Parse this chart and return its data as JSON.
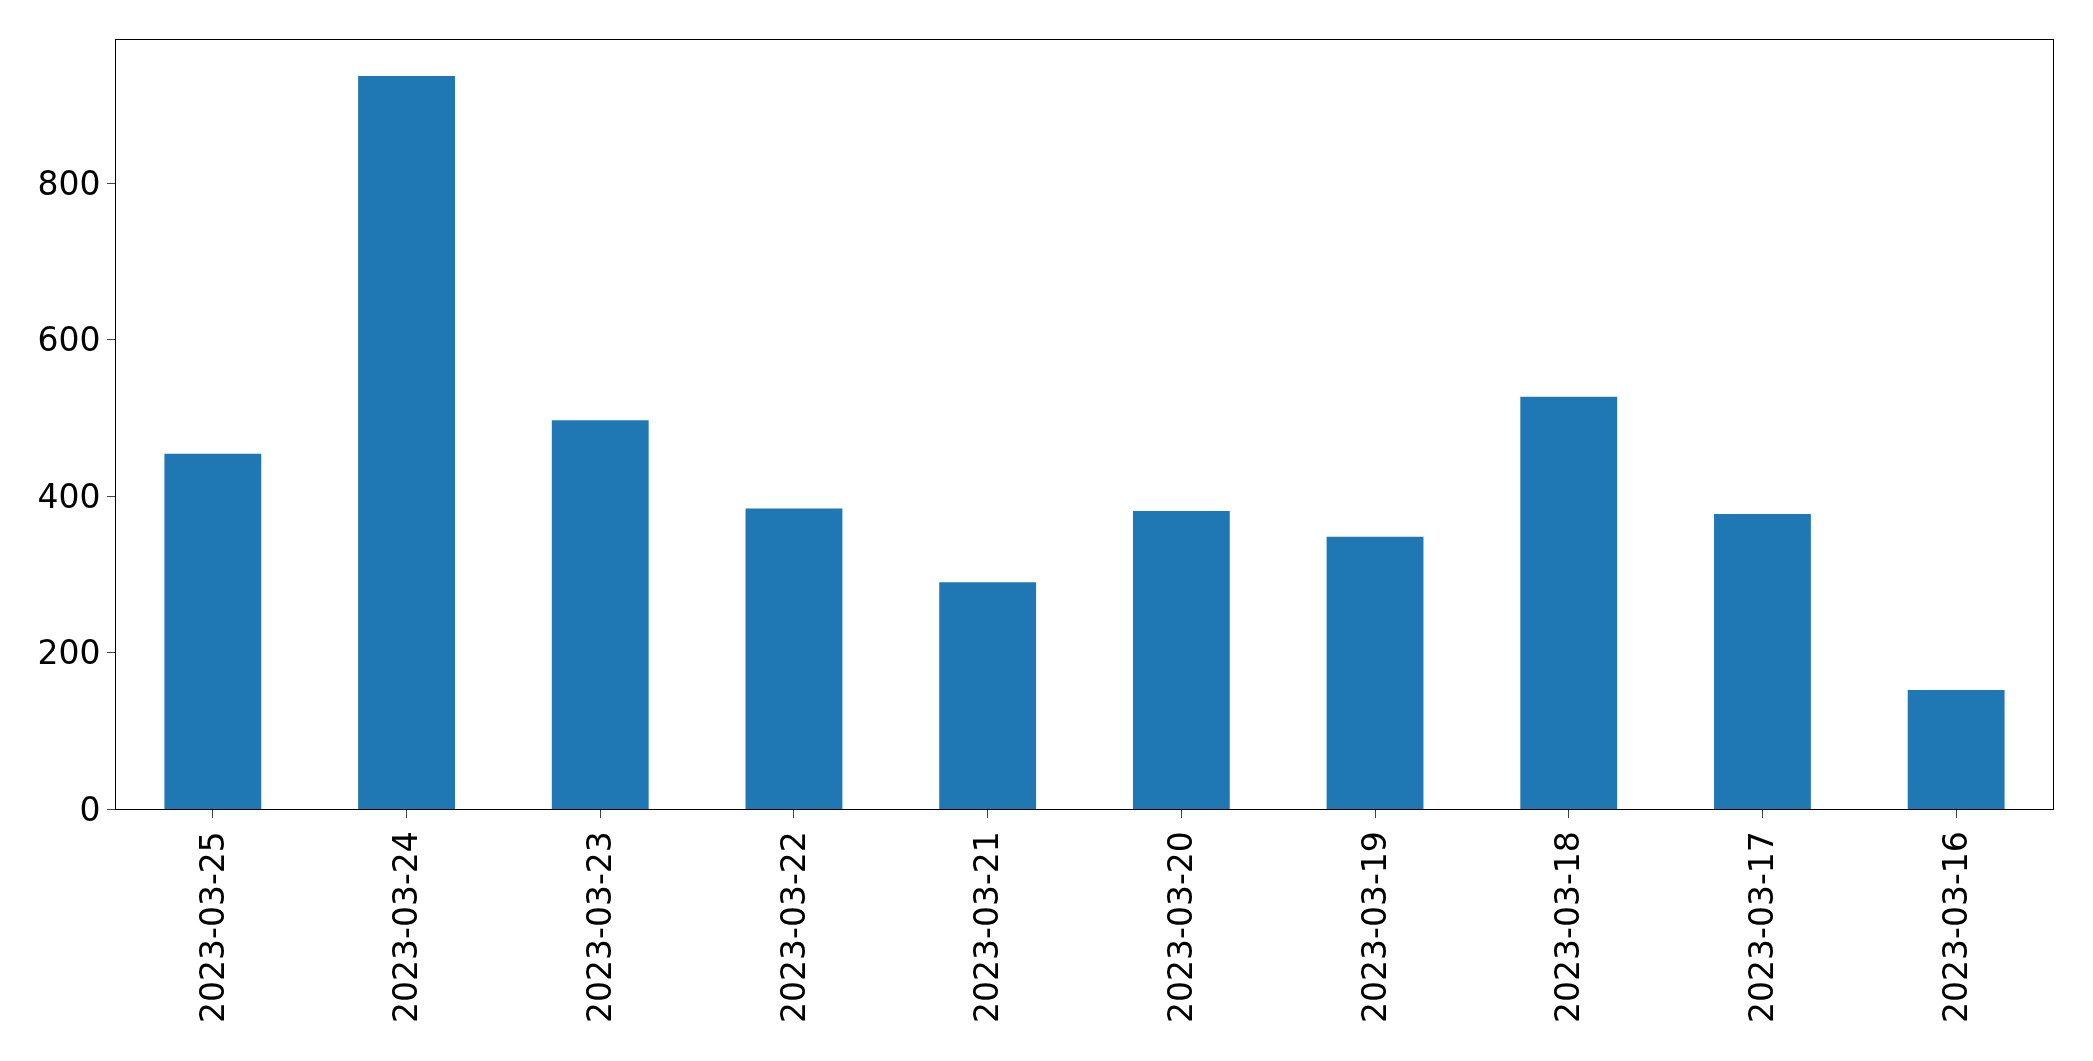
{
  "chart_data": {
    "type": "bar",
    "categories": [
      "2023-03-25",
      "2023-03-24",
      "2023-03-23",
      "2023-03-22",
      "2023-03-21",
      "2023-03-20",
      "2023-03-19",
      "2023-03-18",
      "2023-03-17",
      "2023-03-16"
    ],
    "values": [
      454,
      937,
      497,
      384,
      290,
      381,
      348,
      527,
      377,
      152
    ],
    "color": "#1f77b4",
    "ylim": [
      0,
      983
    ],
    "yticks": [
      0,
      200,
      400,
      600,
      800
    ]
  }
}
